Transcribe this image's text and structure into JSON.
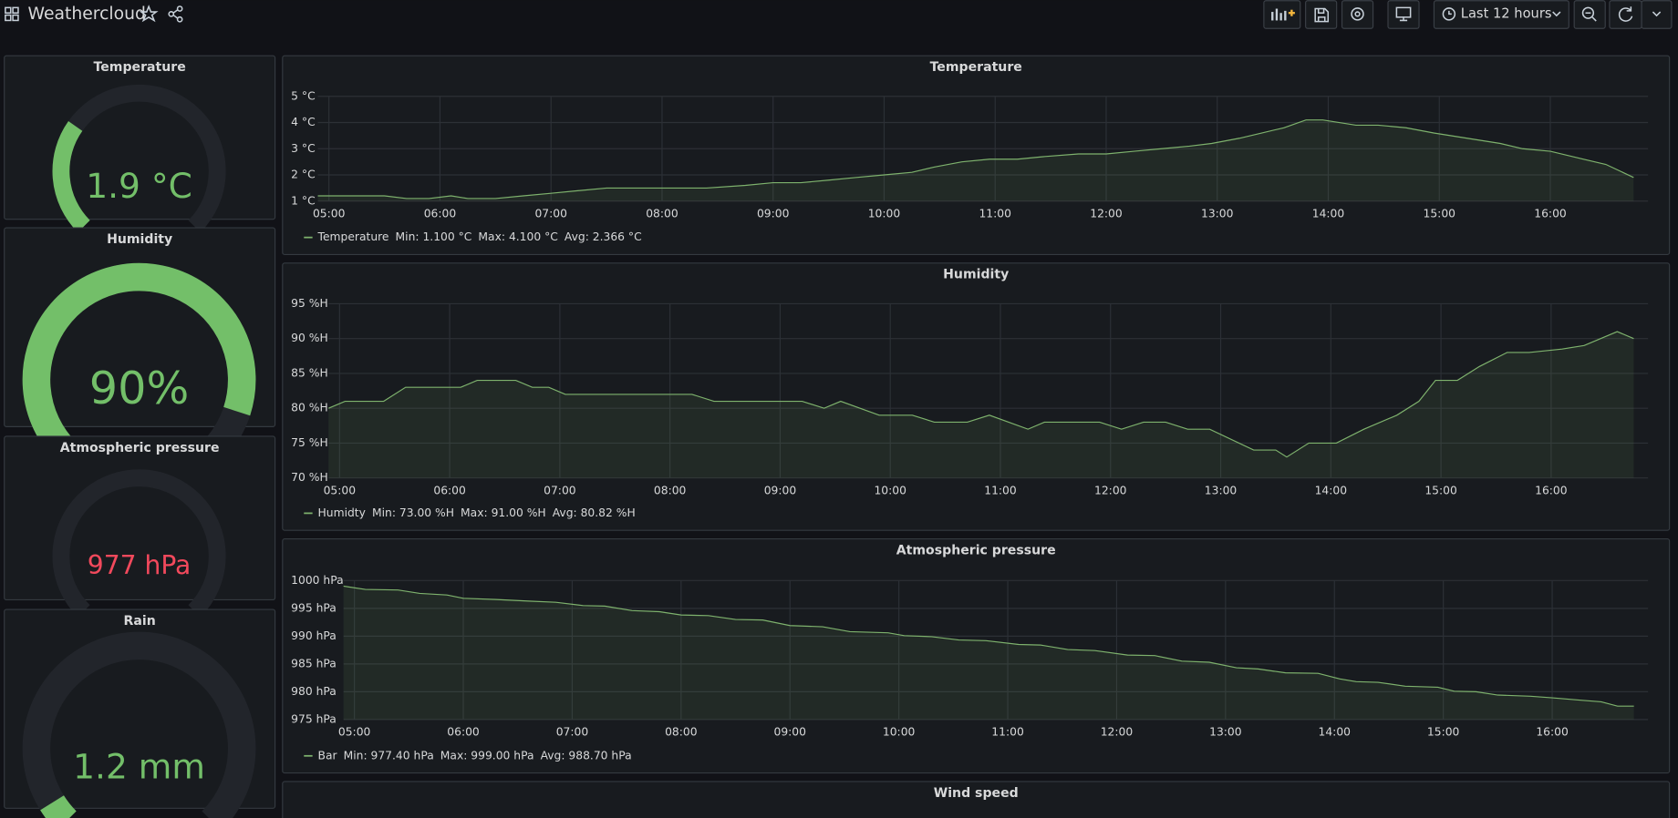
{
  "header": {
    "title": "Weathercloud",
    "time_range": "Last 12 hours"
  },
  "gauges": [
    {
      "title": "Temperature",
      "value": 1.9,
      "value_label": "1.9 °C",
      "range": [
        -10,
        30
      ],
      "color": "#73bf69"
    },
    {
      "title": "Humidity",
      "value": 90,
      "value_label": "90%",
      "range": [
        0,
        100
      ],
      "color": "#73bf69"
    },
    {
      "title": "Atmospheric pressure",
      "value": 977,
      "value_label": "977 hPa",
      "range": [
        980,
        1040
      ],
      "color": "#f2495c"
    },
    {
      "title": "Rain",
      "value": 1.2,
      "value_label": "1.2 mm",
      "range": [
        0,
        25
      ],
      "color": "#73bf69"
    }
  ],
  "chart_data": [
    {
      "type": "line",
      "title": "Temperature",
      "x": [
        4.9,
        5.5,
        5.7,
        5.9,
        6.1,
        6.25,
        6.5,
        6.75,
        7.0,
        7.25,
        7.5,
        8.0,
        8.4,
        8.75,
        9.0,
        9.25,
        9.5,
        9.75,
        10.0,
        10.25,
        10.45,
        10.7,
        10.95,
        11.2,
        11.45,
        11.75,
        12.0,
        12.25,
        12.5,
        12.75,
        12.95,
        13.2,
        13.4,
        13.6,
        13.8,
        13.95,
        14.25,
        14.45,
        14.7,
        14.95,
        15.25,
        15.55,
        15.75,
        16.0,
        16.3,
        16.5,
        16.75
      ],
      "series": [
        {
          "name": "Temperature",
          "color": "#7eb26d",
          "legend_stats": [
            "Min: 1.100 °C",
            "Max: 4.100 °C",
            "Avg: 2.366 °C"
          ],
          "values": [
            1.2,
            1.2,
            1.1,
            1.1,
            1.2,
            1.1,
            1.1,
            1.2,
            1.3,
            1.4,
            1.5,
            1.5,
            1.5,
            1.6,
            1.7,
            1.7,
            1.8,
            1.9,
            2.0,
            2.1,
            2.3,
            2.5,
            2.6,
            2.6,
            2.7,
            2.8,
            2.8,
            2.9,
            3.0,
            3.1,
            3.2,
            3.4,
            3.6,
            3.8,
            4.1,
            4.1,
            3.9,
            3.9,
            3.8,
            3.6,
            3.4,
            3.2,
            3.0,
            2.9,
            2.6,
            2.4,
            1.9
          ]
        }
      ],
      "xlim": [
        4.9,
        16.88
      ],
      "ylim": [
        1,
        5
      ],
      "xticks": [
        {
          "value": 5,
          "label": "05:00"
        },
        {
          "value": 6,
          "label": "06:00"
        },
        {
          "value": 7,
          "label": "07:00"
        },
        {
          "value": 8,
          "label": "08:00"
        },
        {
          "value": 9,
          "label": "09:00"
        },
        {
          "value": 10,
          "label": "10:00"
        },
        {
          "value": 11,
          "label": "11:00"
        },
        {
          "value": 12,
          "label": "12:00"
        },
        {
          "value": 13,
          "label": "13:00"
        },
        {
          "value": 14,
          "label": "14:00"
        },
        {
          "value": 15,
          "label": "15:00"
        },
        {
          "value": 16,
          "label": "16:00"
        }
      ],
      "yticks": [
        {
          "value": 1,
          "label": "1 °C"
        },
        {
          "value": 2,
          "label": "2 °C"
        },
        {
          "value": 3,
          "label": "3 °C"
        },
        {
          "value": 4,
          "label": "4 °C"
        },
        {
          "value": 5,
          "label": "5 °C"
        }
      ],
      "grid": true
    },
    {
      "type": "line",
      "title": "Humidity",
      "x": [
        4.9,
        5.05,
        5.4,
        5.6,
        6.1,
        6.25,
        6.6,
        6.75,
        6.9,
        7.05,
        8.2,
        8.4,
        9.2,
        9.4,
        9.55,
        9.9,
        10.2,
        10.4,
        10.7,
        10.9,
        11.25,
        11.4,
        11.9,
        12.1,
        12.3,
        12.5,
        12.7,
        12.9,
        13.3,
        13.5,
        13.6,
        13.8,
        14.05,
        14.3,
        14.6,
        14.8,
        14.95,
        15.15,
        15.35,
        15.6,
        15.8,
        16.1,
        16.3,
        16.6,
        16.75
      ],
      "series": [
        {
          "name": "Humidty",
          "color": "#7eb26d",
          "legend_stats": [
            "Min: 73.00 %H",
            "Max: 91.00 %H",
            "Avg: 80.82 %H"
          ],
          "values": [
            80,
            81,
            81,
            83,
            83,
            84,
            84,
            83,
            83,
            82,
            82,
            81,
            81,
            80,
            81,
            79,
            79,
            78,
            78,
            79,
            77,
            78,
            78,
            77,
            78,
            78,
            77,
            77,
            74,
            74,
            73,
            75,
            75,
            77,
            79,
            81,
            84,
            84,
            86,
            88,
            88,
            88.5,
            89,
            91,
            90
          ]
        }
      ],
      "xlim": [
        4.9,
        16.88
      ],
      "ylim": [
        70,
        95
      ],
      "xticks": [
        {
          "value": 5,
          "label": "05:00"
        },
        {
          "value": 6,
          "label": "06:00"
        },
        {
          "value": 7,
          "label": "07:00"
        },
        {
          "value": 8,
          "label": "08:00"
        },
        {
          "value": 9,
          "label": "09:00"
        },
        {
          "value": 10,
          "label": "10:00"
        },
        {
          "value": 11,
          "label": "11:00"
        },
        {
          "value": 12,
          "label": "12:00"
        },
        {
          "value": 13,
          "label": "13:00"
        },
        {
          "value": 14,
          "label": "14:00"
        },
        {
          "value": 15,
          "label": "15:00"
        },
        {
          "value": 16,
          "label": "16:00"
        }
      ],
      "yticks": [
        {
          "value": 70,
          "label": "70 %H"
        },
        {
          "value": 75,
          "label": "75 %H"
        },
        {
          "value": 80,
          "label": "80 %H"
        },
        {
          "value": 85,
          "label": "85 %H"
        },
        {
          "value": 90,
          "label": "90 %H"
        },
        {
          "value": 95,
          "label": "95 %H"
        }
      ],
      "grid": true
    },
    {
      "type": "line",
      "title": "Atmospheric pressure",
      "x": [
        4.9,
        5.1,
        5.4,
        5.6,
        5.85,
        6.0,
        6.3,
        6.6,
        6.85,
        7.1,
        7.3,
        7.55,
        7.8,
        8.0,
        8.25,
        8.5,
        8.75,
        9.0,
        9.3,
        9.55,
        9.9,
        10.05,
        10.3,
        10.55,
        10.8,
        11.1,
        11.3,
        11.55,
        11.8,
        12.1,
        12.35,
        12.6,
        12.85,
        13.1,
        13.3,
        13.55,
        13.85,
        14.05,
        14.2,
        14.4,
        14.65,
        14.95,
        15.1,
        15.3,
        15.5,
        15.8,
        16.0,
        16.25,
        16.45,
        16.6,
        16.75
      ],
      "series": [
        {
          "name": "Bar",
          "color": "#7eb26d",
          "legend_stats": [
            "Min: 977.40 hPa",
            "Max: 999.00 hPa",
            "Avg: 988.70 hPa"
          ],
          "values": [
            999,
            998.4,
            998.3,
            997.7,
            997.4,
            996.8,
            996.6,
            996.3,
            996.1,
            995.5,
            995.4,
            994.6,
            994.4,
            993.8,
            993.7,
            993.0,
            992.9,
            991.9,
            991.7,
            990.8,
            990.6,
            990.1,
            989.9,
            989.3,
            989.2,
            988.5,
            988.4,
            987.6,
            987.4,
            986.6,
            986.5,
            985.5,
            985.3,
            984.3,
            984.1,
            983.4,
            983.3,
            982.3,
            981.8,
            981.7,
            981.0,
            980.8,
            980.1,
            980.0,
            979.4,
            979.2,
            978.9,
            978.5,
            978.2,
            977.4,
            977.4
          ]
        }
      ],
      "xlim": [
        4.9,
        16.88
      ],
      "ylim": [
        975,
        1000
      ],
      "xticks": [
        {
          "value": 5,
          "label": "05:00"
        },
        {
          "value": 6,
          "label": "06:00"
        },
        {
          "value": 7,
          "label": "07:00"
        },
        {
          "value": 8,
          "label": "08:00"
        },
        {
          "value": 9,
          "label": "09:00"
        },
        {
          "value": 10,
          "label": "10:00"
        },
        {
          "value": 11,
          "label": "11:00"
        },
        {
          "value": 12,
          "label": "12:00"
        },
        {
          "value": 13,
          "label": "13:00"
        },
        {
          "value": 14,
          "label": "14:00"
        },
        {
          "value": 15,
          "label": "15:00"
        },
        {
          "value": 16,
          "label": "16:00"
        }
      ],
      "yticks": [
        {
          "value": 975,
          "label": "975 hPa"
        },
        {
          "value": 980,
          "label": "980 hPa"
        },
        {
          "value": 985,
          "label": "985 hPa"
        },
        {
          "value": 990,
          "label": "990 hPa"
        },
        {
          "value": 995,
          "label": "995 hPa"
        },
        {
          "value": 1000,
          "label": "1000 hPa"
        }
      ],
      "grid": true
    },
    {
      "type": "line",
      "title": "Wind speed"
    }
  ]
}
